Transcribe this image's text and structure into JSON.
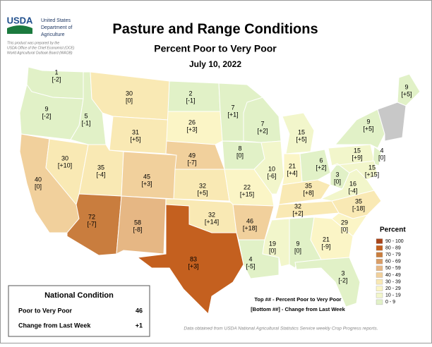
{
  "header": {
    "title": "Pasture and Range Conditions",
    "subtitle": "Percent Poor to Very Poor",
    "date": "July 10, 2022"
  },
  "logo": {
    "mark": "USDA",
    "line1": "United States",
    "line2": "Department of",
    "line3": "Agriculture"
  },
  "credit": {
    "line1": "This product was prepared by the",
    "line2": "USDA Office of the Chief Economist (OCE)",
    "line3": "World Agricultural Outlook Board (WAOB)"
  },
  "states": [
    {
      "value": "1",
      "change": "[-2]"
    },
    {
      "value": "9",
      "change": "[-2]"
    },
    {
      "value": "40",
      "change": "[0]"
    },
    {
      "value": "30",
      "change": "[+10]"
    },
    {
      "value": "5",
      "change": "[-1]"
    },
    {
      "value": "30",
      "change": "[0]"
    },
    {
      "value": "31",
      "change": "[+5]"
    },
    {
      "value": "35",
      "change": "[-4]"
    },
    {
      "value": "45",
      "change": "[+3]"
    },
    {
      "value": "72",
      "change": "[-7]"
    },
    {
      "value": "58",
      "change": "[-8]"
    },
    {
      "value": "2",
      "change": "[-1]"
    },
    {
      "value": "26",
      "change": "[+3]"
    },
    {
      "value": "49",
      "change": "[-7]"
    },
    {
      "value": "32",
      "change": "[+5]"
    },
    {
      "value": "32",
      "change": "[+14]"
    },
    {
      "value": "83",
      "change": "[+3]"
    },
    {
      "value": "7",
      "change": "[+1]"
    },
    {
      "value": "8",
      "change": "[0]"
    },
    {
      "value": "22",
      "change": "[+15]"
    },
    {
      "value": "46",
      "change": "[+18]"
    },
    {
      "value": "4",
      "change": "[-5]"
    },
    {
      "value": "7",
      "change": "[+2]"
    },
    {
      "value": "10",
      "change": "[-6]"
    },
    {
      "value": "15",
      "change": "[+5]"
    },
    {
      "value": "21",
      "change": "[+4]"
    },
    {
      "value": "6",
      "change": "[+2]"
    },
    {
      "value": "35",
      "change": "[+8]"
    },
    {
      "value": "3",
      "change": "[0]"
    },
    {
      "value": "16",
      "change": "[-4]"
    },
    {
      "value": "32",
      "change": "[+2]"
    },
    {
      "value": "35",
      "change": "[-18]"
    },
    {
      "value": "29",
      "change": "[0]"
    },
    {
      "value": "21",
      "change": "[-9]"
    },
    {
      "value": "9",
      "change": "[0]"
    },
    {
      "value": "19",
      "change": "[0]"
    },
    {
      "value": "3",
      "change": "[-2]"
    },
    {
      "value": "15",
      "change": "[+9]"
    },
    {
      "value": "9",
      "change": "[+5]"
    },
    {
      "value": "4",
      "change": "[0]"
    },
    {
      "value": "15",
      "change": "[+15]"
    },
    {
      "value": "9",
      "change": "[+5]"
    }
  ],
  "legend": {
    "title": "Percent",
    "bins": [
      {
        "label": "90 - 100",
        "color": "#a8441a"
      },
      {
        "label": "80 - 89",
        "color": "#c4601f"
      },
      {
        "label": "70 - 79",
        "color": "#c97d3e"
      },
      {
        "label": "60 - 69",
        "color": "#d99d66"
      },
      {
        "label": "50 - 59",
        "color": "#e6b784"
      },
      {
        "label": "40 - 49",
        "color": "#f1d09c"
      },
      {
        "label": "30 - 39",
        "color": "#f9e9b4"
      },
      {
        "label": "20 - 29",
        "color": "#fbf5c6"
      },
      {
        "label": "10 - 19",
        "color": "#f2f6cb"
      },
      {
        "label": "0 - 9",
        "color": "#e1f1c7"
      }
    ]
  },
  "key": {
    "line1": "Top ## - Percent Poor to Very Poor",
    "line2": "[Bottom ##] - Change from Last Week"
  },
  "national": {
    "title": "National Condition",
    "rows": [
      [
        "Poor to Very Poor",
        "46"
      ],
      [
        "Change from Last Week",
        "+1"
      ]
    ]
  },
  "source": "Data obtained from USDA National Agricultural Statistics Service weekly Crop Progress reports."
}
